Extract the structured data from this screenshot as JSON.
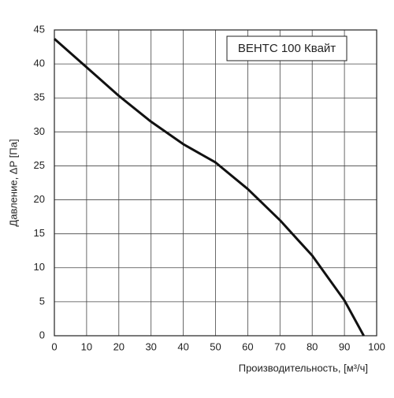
{
  "chart_data": {
    "type": "line",
    "x_label": "Производительность, [м³/ч]",
    "y_label": "Давление, ΔР [Па]",
    "x": [
      0,
      10,
      20,
      30,
      40,
      50,
      60,
      70,
      80,
      90,
      96
    ],
    "series": [
      {
        "name": "ВЕНТС 100 Квайт",
        "color": "#111111",
        "values": [
          43.7,
          39.5,
          35.3,
          31.5,
          28.2,
          25.5,
          21.6,
          17,
          11.8,
          5.2,
          0
        ]
      }
    ],
    "xlim": [
      0,
      100
    ],
    "xticks": [
      0,
      10,
      20,
      30,
      40,
      50,
      60,
      70,
      80,
      90,
      100
    ],
    "ylim": [
      0,
      45
    ],
    "yticks": [
      0,
      5,
      10,
      15,
      20,
      25,
      30,
      35,
      40,
      45
    ],
    "grid": true,
    "legend": "upper right"
  }
}
